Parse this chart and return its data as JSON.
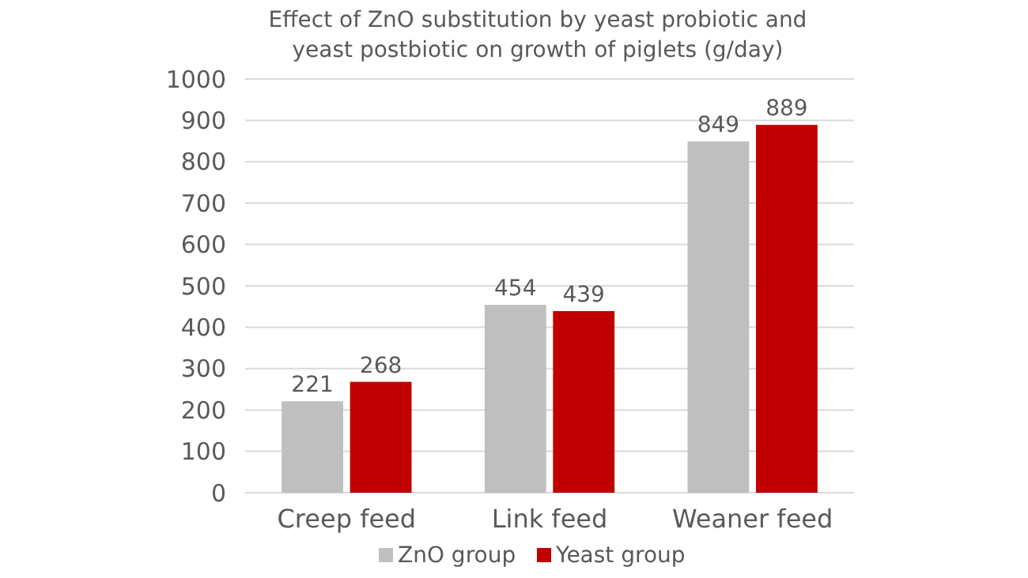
{
  "chart_data": {
    "type": "bar",
    "title": "Effect of ZnO substitution by yeast probiotic and\nyeast postbiotic on growth of piglets (g/day)",
    "categories": [
      "Creep feed",
      "Link feed",
      "Weaner feed"
    ],
    "series": [
      {
        "name": "ZnO group",
        "color": "#bfbfbf",
        "values": [
          221,
          454,
          849
        ]
      },
      {
        "name": "Yeast group",
        "color": "#c00000",
        "values": [
          268,
          439,
          889
        ]
      }
    ],
    "ylim": [
      0,
      1000
    ],
    "yticks": [
      0,
      100,
      200,
      300,
      400,
      500,
      600,
      700,
      800,
      900,
      1000
    ],
    "grid": "y",
    "legend": "bottom",
    "data_labels": true
  }
}
